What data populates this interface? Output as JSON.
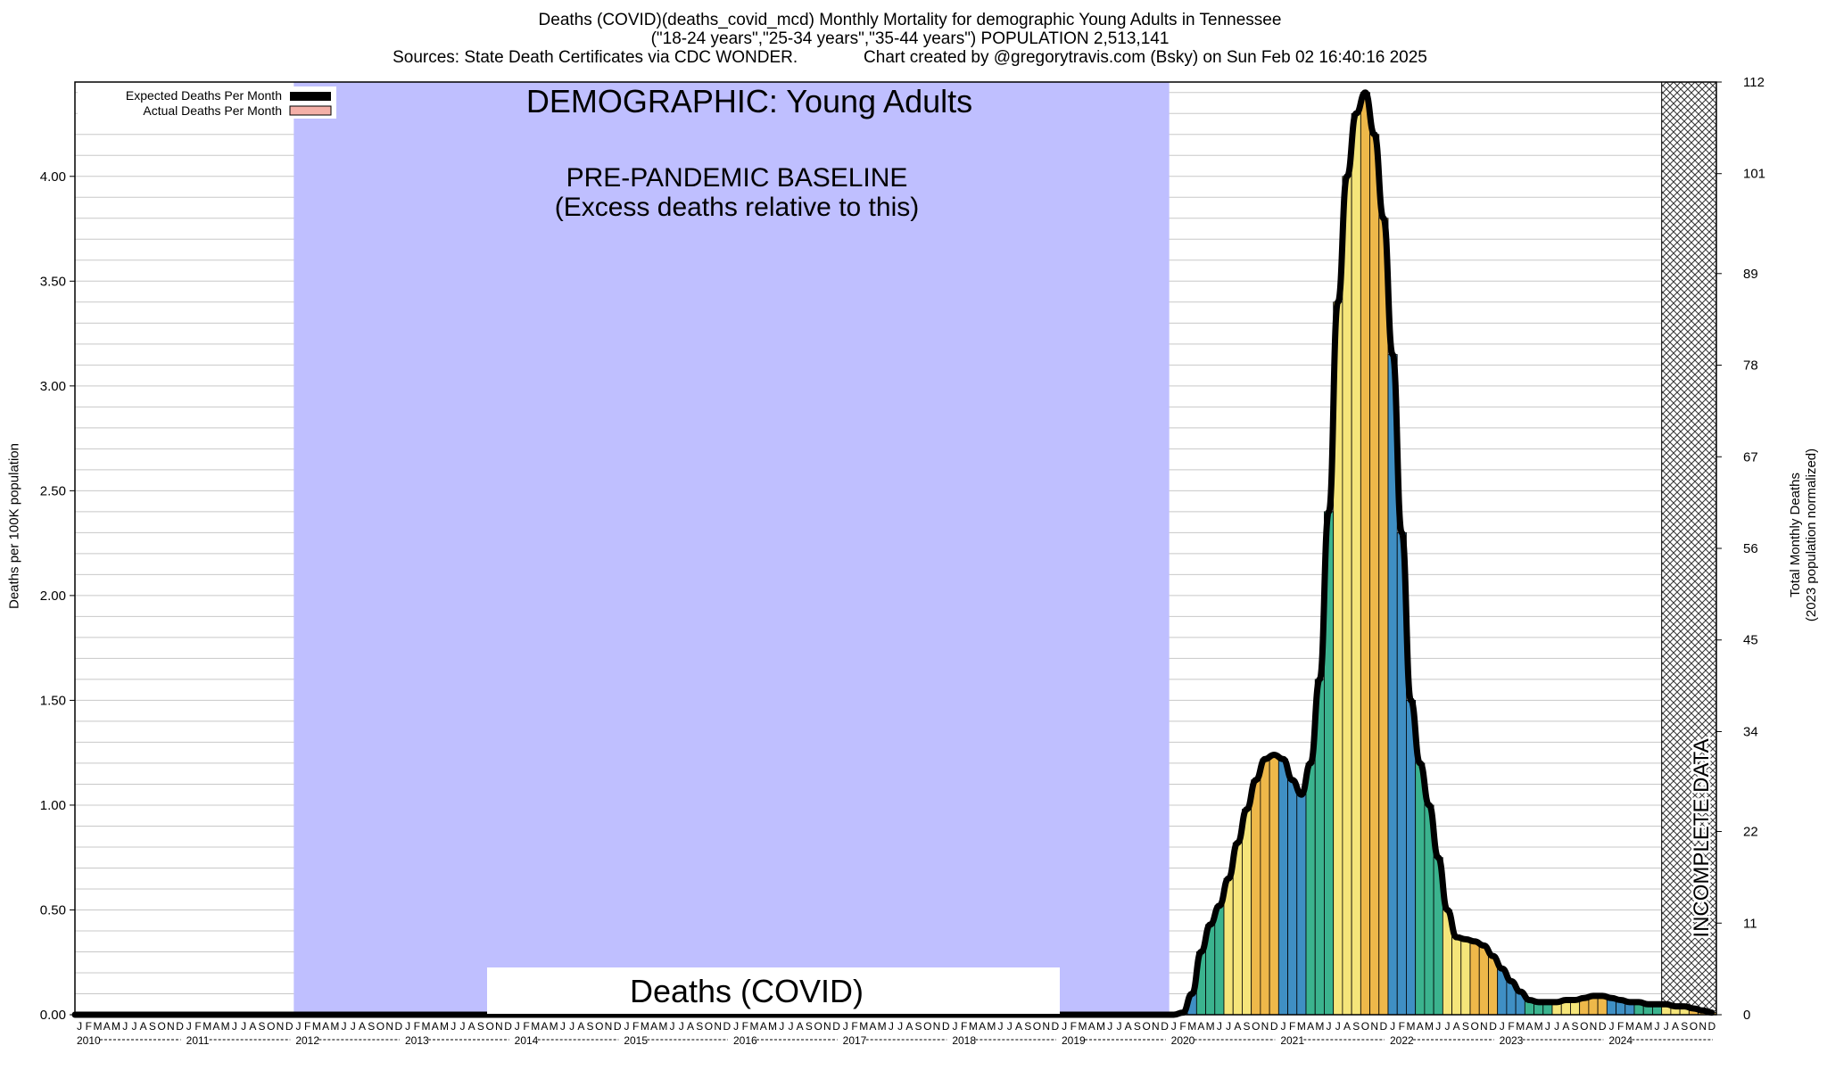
{
  "title": {
    "line1": "Deaths (COVID)(deaths_covid_mcd) Monthly Mortality for demographic Young Adults in Tennessee",
    "line2": "(\"18-24 years\",\"25-34 years\",\"35-44 years\") POPULATION 2,513,141",
    "line3": "Sources: State Death Certificates via CDC WONDER.              Chart created by @gregorytravis.com (Bsky) on Sun Feb 02 16:40:16 2025"
  },
  "annotations": {
    "demographic": "DEMOGRAPHIC: Young Adults",
    "baseline_line1": "PRE-PANDEMIC BASELINE",
    "baseline_line2": "(Excess deaths relative to this)",
    "cause": "Deaths (COVID)",
    "incomplete": "INCOMPLETE DATA"
  },
  "legend": {
    "expected": "Expected Deaths Per Month",
    "actual": "Actual Deaths Per Month"
  },
  "axes": {
    "left_label": "Deaths per 100K population",
    "right_label_1": "Total Monthly Deaths",
    "right_label_2": "(2023 population normalized)",
    "left_ticks": [
      "0.00",
      "0.50",
      "1.00",
      "1.50",
      "2.00",
      "2.50",
      "3.00",
      "3.50",
      "4.00"
    ],
    "right_ticks": [
      "0",
      "11",
      "22",
      "34",
      "45",
      "56",
      "67",
      "78",
      "89",
      "101",
      "112"
    ],
    "month_letters": [
      "J",
      "F",
      "M",
      "A",
      "M",
      "J",
      "J",
      "A",
      "S",
      "O",
      "N",
      "D"
    ],
    "years": [
      "2010",
      "2011",
      "2012",
      "2013",
      "2014",
      "2015",
      "2016",
      "2017",
      "2018",
      "2019",
      "2020",
      "2021",
      "2022",
      "2023",
      "2024"
    ]
  },
  "colors": {
    "baseline_region": "#bfbfff",
    "bar_yellow": "#f5e57a",
    "bar_orange": "#eeb84a",
    "bar_blue": "#3f8fc4",
    "bar_green": "#3bb38e",
    "curve": "#000000",
    "actual_legend": "#f4b0a8"
  },
  "chart_data": {
    "type": "bar",
    "x_start": "2010-01",
    "x_end": "2024-12",
    "ylim": [
      0,
      4.45
    ],
    "right_axis_lim": [
      0,
      112
    ],
    "baseline_period": [
      "2012-01",
      "2019-12"
    ],
    "incomplete_period": [
      "2024-07",
      "2024-12"
    ],
    "series": [
      {
        "name": "Expected Deaths Per Month",
        "style": "curve",
        "note_values_start": "2010-01",
        "values_before_2020": 0
      },
      {
        "name": "Actual Deaths Per Month",
        "start": "2020-01",
        "values": [
          0.0,
          0.01,
          0.1,
          0.3,
          0.43,
          0.52,
          0.65,
          0.82,
          0.98,
          1.12,
          1.22,
          1.24,
          1.22,
          1.12,
          1.05,
          1.2,
          1.6,
          2.4,
          3.4,
          4.0,
          4.3,
          4.4,
          4.2,
          3.8,
          3.15,
          2.3,
          1.5,
          1.2,
          1.0,
          0.75,
          0.5,
          0.37,
          0.36,
          0.35,
          0.33,
          0.28,
          0.22,
          0.16,
          0.11,
          0.07,
          0.06,
          0.06,
          0.06,
          0.07,
          0.07,
          0.08,
          0.09,
          0.09,
          0.08,
          0.07,
          0.06,
          0.06,
          0.05,
          0.05,
          0.05,
          0.04,
          0.04,
          0.03,
          0.02,
          0.01
        ]
      }
    ]
  }
}
